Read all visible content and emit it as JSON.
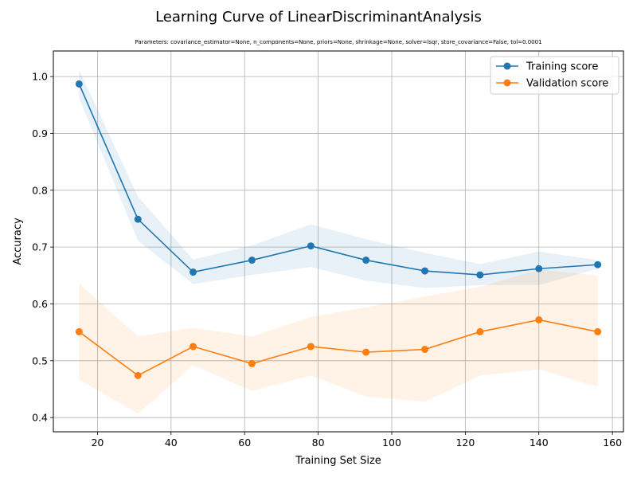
{
  "chart_data": {
    "type": "line",
    "title": "Learning Curve of LinearDiscriminantAnalysis",
    "subtitle": "Parameters: covariance_estimator=None, n_components=None, priors=None, shrinkage=None, solver=lsqr, store_covariance=False, tol=0.0001",
    "xlabel": "Training Set Size",
    "ylabel": "Accuracy",
    "xlim": [
      8,
      163
    ],
    "ylim": [
      0.375,
      1.045
    ],
    "xticks": [
      20,
      40,
      60,
      80,
      100,
      120,
      140,
      160
    ],
    "yticks": [
      0.4,
      0.5,
      0.6,
      0.7,
      0.8,
      0.9,
      1.0
    ],
    "grid": true,
    "legend_position": "top-right",
    "x": [
      15,
      31,
      46,
      62,
      78,
      93,
      109,
      124,
      140,
      156
    ],
    "series": [
      {
        "name": "Training score",
        "color": "#1f77b4",
        "band_color": "#1f77b4",
        "values": [
          0.987,
          0.749,
          0.656,
          0.677,
          0.702,
          0.677,
          0.658,
          0.651,
          0.662,
          0.669
        ],
        "band_lower": [
          0.962,
          0.711,
          0.635,
          0.651,
          0.665,
          0.641,
          0.628,
          0.633,
          0.633,
          0.662
        ],
        "band_upper": [
          1.012,
          0.789,
          0.678,
          0.703,
          0.74,
          0.714,
          0.69,
          0.67,
          0.692,
          0.677
        ]
      },
      {
        "name": "Validation score",
        "color": "#ff7f0e",
        "band_color": "#ff7f0e",
        "values": [
          0.551,
          0.474,
          0.525,
          0.495,
          0.525,
          0.515,
          0.52,
          0.551,
          0.572,
          0.551
        ],
        "band_lower": [
          0.467,
          0.407,
          0.492,
          0.447,
          0.474,
          0.437,
          0.428,
          0.474,
          0.485,
          0.454
        ],
        "band_upper": [
          0.636,
          0.543,
          0.558,
          0.543,
          0.577,
          0.594,
          0.613,
          0.63,
          0.66,
          0.65
        ]
      }
    ]
  }
}
